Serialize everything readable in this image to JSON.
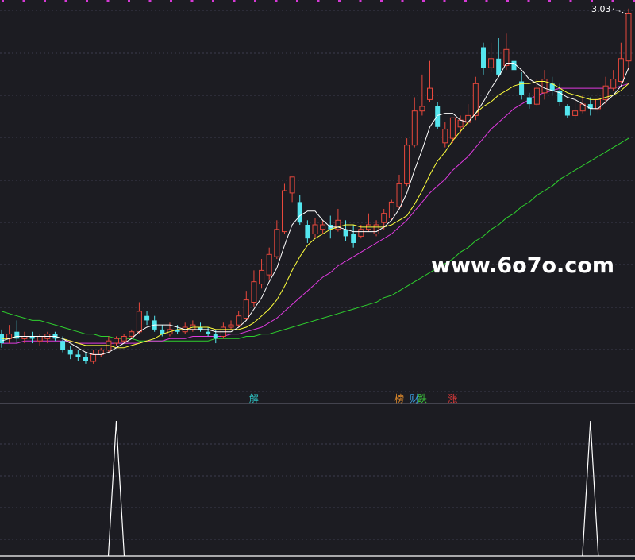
{
  "watermark": "www.6o7o.com",
  "price_label": "3.03",
  "markers": [
    {
      "text": "解",
      "color": "#2ec4c4",
      "index": 33
    },
    {
      "text": "榜",
      "color": "#e08a2a",
      "index": 52
    },
    {
      "text": "财",
      "color": "#3a9ad9",
      "index": 54
    },
    {
      "text": "跌",
      "color": "#3cc43c",
      "index": 55
    },
    {
      "text": "涨",
      "color": "#e03a3a",
      "index": 59
    }
  ],
  "colors": {
    "background": "#1c1c22",
    "up": "#e8483c",
    "down": "#54e6ef",
    "ma5": "#ffffff",
    "ma10": "#ffff3c",
    "ma20": "#e03ae0",
    "ma60": "#2ed12e",
    "grid": "#3c3c4e",
    "top_dots": "#d63ad6"
  },
  "chart_data": {
    "type": "candlestick",
    "ylim": [
      1.35,
      3.07
    ],
    "candles": [
      [
        1.62,
        1.58,
        1.64,
        1.56
      ],
      [
        1.6,
        1.62,
        1.66,
        1.58
      ],
      [
        1.63,
        1.6,
        1.68,
        1.58
      ],
      [
        1.6,
        1.61,
        1.63,
        1.58
      ],
      [
        1.61,
        1.6,
        1.63,
        1.58
      ],
      [
        1.59,
        1.61,
        1.62,
        1.57
      ],
      [
        1.6,
        1.62,
        1.63,
        1.58
      ],
      [
        1.62,
        1.6,
        1.63,
        1.59
      ],
      [
        1.59,
        1.55,
        1.61,
        1.54
      ],
      [
        1.55,
        1.53,
        1.57,
        1.51
      ],
      [
        1.53,
        1.52,
        1.55,
        1.5
      ],
      [
        1.52,
        1.5,
        1.54,
        1.49
      ],
      [
        1.5,
        1.53,
        1.55,
        1.49
      ],
      [
        1.53,
        1.55,
        1.56,
        1.52
      ],
      [
        1.55,
        1.59,
        1.61,
        1.54
      ],
      [
        1.58,
        1.6,
        1.61,
        1.57
      ],
      [
        1.59,
        1.61,
        1.62,
        1.58
      ],
      [
        1.61,
        1.63,
        1.64,
        1.6
      ],
      [
        1.63,
        1.72,
        1.76,
        1.62
      ],
      [
        1.7,
        1.68,
        1.72,
        1.66
      ],
      [
        1.68,
        1.64,
        1.7,
        1.63
      ],
      [
        1.64,
        1.62,
        1.66,
        1.61
      ],
      [
        1.62,
        1.64,
        1.67,
        1.61
      ],
      [
        1.64,
        1.63,
        1.66,
        1.62
      ],
      [
        1.63,
        1.65,
        1.67,
        1.62
      ],
      [
        1.64,
        1.66,
        1.68,
        1.63
      ],
      [
        1.65,
        1.64,
        1.67,
        1.63
      ],
      [
        1.63,
        1.62,
        1.65,
        1.61
      ],
      [
        1.62,
        1.6,
        1.64,
        1.58
      ],
      [
        1.61,
        1.65,
        1.67,
        1.6
      ],
      [
        1.65,
        1.66,
        1.68,
        1.64
      ],
      [
        1.66,
        1.7,
        1.72,
        1.65
      ],
      [
        1.69,
        1.77,
        1.81,
        1.68
      ],
      [
        1.76,
        1.85,
        1.9,
        1.74
      ],
      [
        1.84,
        1.9,
        1.95,
        1.82
      ],
      [
        1.88,
        1.97,
        2.0,
        1.86
      ],
      [
        1.96,
        2.08,
        2.12,
        1.95
      ],
      [
        2.07,
        2.25,
        2.28,
        2.06
      ],
      [
        2.24,
        2.31,
        2.31,
        2.2
      ],
      [
        2.2,
        2.11,
        2.23,
        2.1
      ],
      [
        2.1,
        2.04,
        2.12,
        2.02
      ],
      [
        2.06,
        2.1,
        2.13,
        2.04
      ],
      [
        2.08,
        2.1,
        2.12,
        2.06
      ],
      [
        2.1,
        2.08,
        2.14,
        2.04
      ],
      [
        2.08,
        2.12,
        2.17,
        2.07
      ],
      [
        2.08,
        2.05,
        2.12,
        2.03
      ],
      [
        2.06,
        2.02,
        2.1,
        2.0
      ],
      [
        2.05,
        2.08,
        2.1,
        2.04
      ],
      [
        2.08,
        2.1,
        2.15,
        2.07
      ],
      [
        2.06,
        2.1,
        2.12,
        2.05
      ],
      [
        2.11,
        2.15,
        2.17,
        2.08
      ],
      [
        2.13,
        2.2,
        2.21,
        2.12
      ],
      [
        2.18,
        2.28,
        2.32,
        2.17
      ],
      [
        2.28,
        2.45,
        2.48,
        2.27
      ],
      [
        2.45,
        2.6,
        2.66,
        2.44
      ],
      [
        2.6,
        2.62,
        2.76,
        2.58
      ],
      [
        2.65,
        2.7,
        2.82,
        2.64
      ],
      [
        2.62,
        2.53,
        2.64,
        2.52
      ],
      [
        2.46,
        2.52,
        2.55,
        2.44
      ],
      [
        2.48,
        2.57,
        2.57,
        2.46
      ],
      [
        2.53,
        2.56,
        2.58,
        2.5
      ],
      [
        2.55,
        2.58,
        2.63,
        2.54
      ],
      [
        2.58,
        2.72,
        2.75,
        2.56
      ],
      [
        2.88,
        2.79,
        2.9,
        2.76
      ],
      [
        2.79,
        2.83,
        2.9,
        2.77
      ],
      [
        2.83,
        2.76,
        2.92,
        2.75
      ],
      [
        2.8,
        2.87,
        2.94,
        2.78
      ],
      [
        2.82,
        2.78,
        2.86,
        2.74
      ],
      [
        2.73,
        2.67,
        2.77,
        2.65
      ],
      [
        2.66,
        2.63,
        2.68,
        2.61
      ],
      [
        2.63,
        2.7,
        2.74,
        2.62
      ],
      [
        2.68,
        2.74,
        2.78,
        2.65
      ],
      [
        2.72,
        2.69,
        2.75,
        2.67
      ],
      [
        2.69,
        2.64,
        2.72,
        2.62
      ],
      [
        2.62,
        2.58,
        2.63,
        2.57
      ],
      [
        2.58,
        2.6,
        2.65,
        2.56
      ],
      [
        2.6,
        2.63,
        2.67,
        2.59
      ],
      [
        2.63,
        2.61,
        2.66,
        2.58
      ],
      [
        2.61,
        2.65,
        2.68,
        2.59
      ],
      [
        2.65,
        2.71,
        2.75,
        2.63
      ],
      [
        2.7,
        2.74,
        2.78,
        2.69
      ],
      [
        2.73,
        2.83,
        2.9,
        2.72
      ],
      [
        2.82,
        3.03,
        3.05,
        2.78
      ]
    ],
    "ma5": [
      1.59,
      1.6,
      1.61,
      1.61,
      1.61,
      1.61,
      1.61,
      1.61,
      1.6,
      1.58,
      1.56,
      1.54,
      1.53,
      1.53,
      1.54,
      1.56,
      1.58,
      1.6,
      1.63,
      1.65,
      1.66,
      1.66,
      1.66,
      1.65,
      1.64,
      1.64,
      1.64,
      1.64,
      1.63,
      1.63,
      1.63,
      1.65,
      1.68,
      1.73,
      1.78,
      1.85,
      1.91,
      2.01,
      2.1,
      2.14,
      2.16,
      2.16,
      2.12,
      2.09,
      2.09,
      2.08,
      2.07,
      2.07,
      2.07,
      2.07,
      2.09,
      2.12,
      2.17,
      2.24,
      2.34,
      2.43,
      2.53,
      2.58,
      2.59,
      2.59,
      2.56,
      2.55,
      2.59,
      2.64,
      2.7,
      2.75,
      2.81,
      2.81,
      2.78,
      2.74,
      2.72,
      2.7,
      2.69,
      2.68,
      2.66,
      2.65,
      2.63,
      2.61,
      2.61,
      2.64,
      2.67,
      2.71,
      2.79
    ],
    "ma10": [
      1.6,
      1.6,
      1.61,
      1.61,
      1.61,
      1.61,
      1.61,
      1.61,
      1.6,
      1.59,
      1.58,
      1.57,
      1.57,
      1.57,
      1.57,
      1.56,
      1.56,
      1.57,
      1.58,
      1.59,
      1.6,
      1.62,
      1.63,
      1.64,
      1.64,
      1.65,
      1.65,
      1.65,
      1.64,
      1.64,
      1.64,
      1.64,
      1.65,
      1.67,
      1.7,
      1.73,
      1.77,
      1.83,
      1.9,
      1.96,
      2.01,
      2.04,
      2.06,
      2.08,
      2.09,
      2.1,
      2.1,
      2.09,
      2.09,
      2.09,
      2.09,
      2.1,
      2.12,
      2.14,
      2.19,
      2.25,
      2.32,
      2.38,
      2.42,
      2.47,
      2.51,
      2.55,
      2.59,
      2.62,
      2.64,
      2.67,
      2.69,
      2.71,
      2.72,
      2.72,
      2.73,
      2.73,
      2.72,
      2.7,
      2.68,
      2.67,
      2.66,
      2.65,
      2.65,
      2.66,
      2.67,
      2.69,
      2.72
    ],
    "ma20": [
      1.58,
      1.58,
      1.58,
      1.59,
      1.59,
      1.59,
      1.59,
      1.59,
      1.59,
      1.59,
      1.58,
      1.58,
      1.58,
      1.58,
      1.58,
      1.58,
      1.58,
      1.58,
      1.58,
      1.59,
      1.59,
      1.59,
      1.6,
      1.6,
      1.6,
      1.61,
      1.61,
      1.61,
      1.61,
      1.61,
      1.62,
      1.62,
      1.63,
      1.64,
      1.65,
      1.67,
      1.69,
      1.72,
      1.75,
      1.78,
      1.81,
      1.84,
      1.87,
      1.89,
      1.92,
      1.94,
      1.96,
      1.98,
      2.0,
      2.02,
      2.04,
      2.06,
      2.09,
      2.12,
      2.16,
      2.2,
      2.24,
      2.27,
      2.3,
      2.34,
      2.37,
      2.4,
      2.44,
      2.48,
      2.52,
      2.55,
      2.58,
      2.61,
      2.63,
      2.65,
      2.67,
      2.68,
      2.69,
      2.7,
      2.7,
      2.7,
      2.7,
      2.7,
      2.7,
      2.7,
      2.7,
      2.71,
      2.72
    ],
    "ma60": [
      1.72,
      1.71,
      1.7,
      1.69,
      1.68,
      1.68,
      1.67,
      1.66,
      1.65,
      1.64,
      1.63,
      1.62,
      1.62,
      1.61,
      1.61,
      1.6,
      1.6,
      1.6,
      1.59,
      1.59,
      1.59,
      1.59,
      1.59,
      1.59,
      1.59,
      1.59,
      1.59,
      1.59,
      1.6,
      1.6,
      1.6,
      1.6,
      1.61,
      1.61,
      1.62,
      1.62,
      1.63,
      1.64,
      1.65,
      1.66,
      1.67,
      1.68,
      1.69,
      1.7,
      1.71,
      1.72,
      1.73,
      1.74,
      1.75,
      1.76,
      1.78,
      1.79,
      1.81,
      1.83,
      1.85,
      1.87,
      1.89,
      1.91,
      1.93,
      1.95,
      1.98,
      2.0,
      2.03,
      2.05,
      2.08,
      2.1,
      2.13,
      2.15,
      2.18,
      2.2,
      2.23,
      2.25,
      2.27,
      2.3,
      2.32,
      2.34,
      2.36,
      2.38,
      2.4,
      2.42,
      2.44,
      2.46,
      2.48
    ],
    "indicator": {
      "ylim": [
        0,
        1
      ],
      "spikes": [
        {
          "x_index": 15,
          "value": 1
        },
        {
          "x_index": 77,
          "value": 1
        }
      ]
    }
  }
}
